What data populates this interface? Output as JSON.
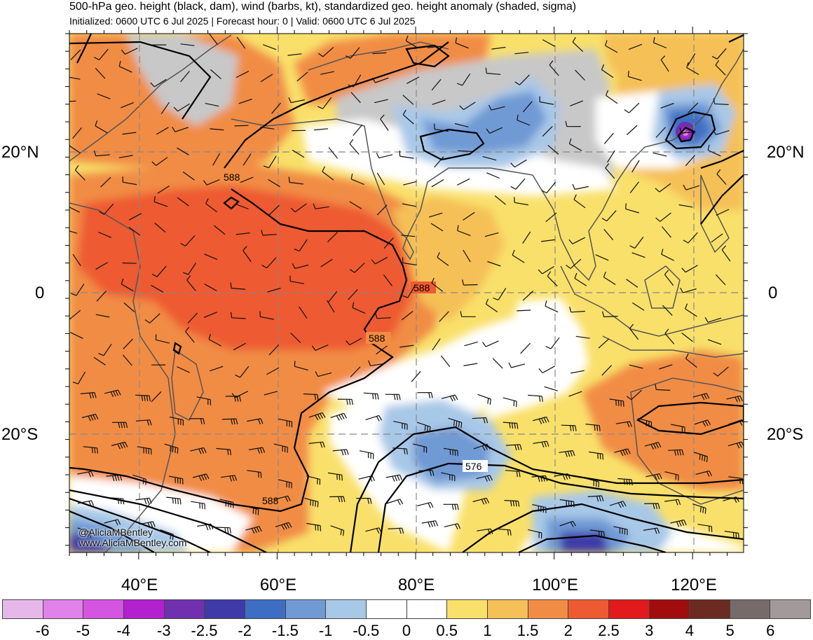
{
  "header": {
    "title": "500-hPa geo. height (black, dam), wind (barbs, kt), standardized geo. height anomaly (shaded, sigma)",
    "subtitle": "Initialized: 0600 UTC 6 Jul 2025 | Forecast hour: 0 | Valid: 0600 UTC 6 Jul 2025"
  },
  "map": {
    "lat_labels": {
      "n20": "20°N",
      "eq": "0",
      "s20": "20°S"
    },
    "lon_labels": [
      "40°E",
      "60°E",
      "80°E",
      "100°E",
      "120°E"
    ],
    "contour_labels": [
      "588",
      "588",
      "588",
      "588",
      "576"
    ],
    "credit": {
      "twitter": "@AliciaMBentley",
      "web": "www.AliciaMBentley.com"
    },
    "colors": {
      "land_outline": "#555555",
      "contour": "#000000",
      "grid": "#888888"
    }
  },
  "colorbar": {
    "labels": [
      "-6",
      "-5",
      "-4",
      "-3",
      "-2.5",
      "-2",
      "-1.5",
      "-1",
      "-0.5",
      "0",
      "0.5",
      "1",
      "1.5",
      "2",
      "2.5",
      "3",
      "4",
      "5",
      "6"
    ],
    "colors": [
      "#e6b8ea",
      "#e181ea",
      "#d455e0",
      "#b220d0",
      "#7030b0",
      "#3e3aa8",
      "#3d6ec4",
      "#6f9ad4",
      "#a8c8e8",
      "#ffffff",
      "#ffffff",
      "#f9e06a",
      "#f5c057",
      "#f18c44",
      "#ee5a32",
      "#e31a1c",
      "#a10c0c",
      "#6b2a22",
      "#766b6a",
      "#a29a9a"
    ]
  }
}
